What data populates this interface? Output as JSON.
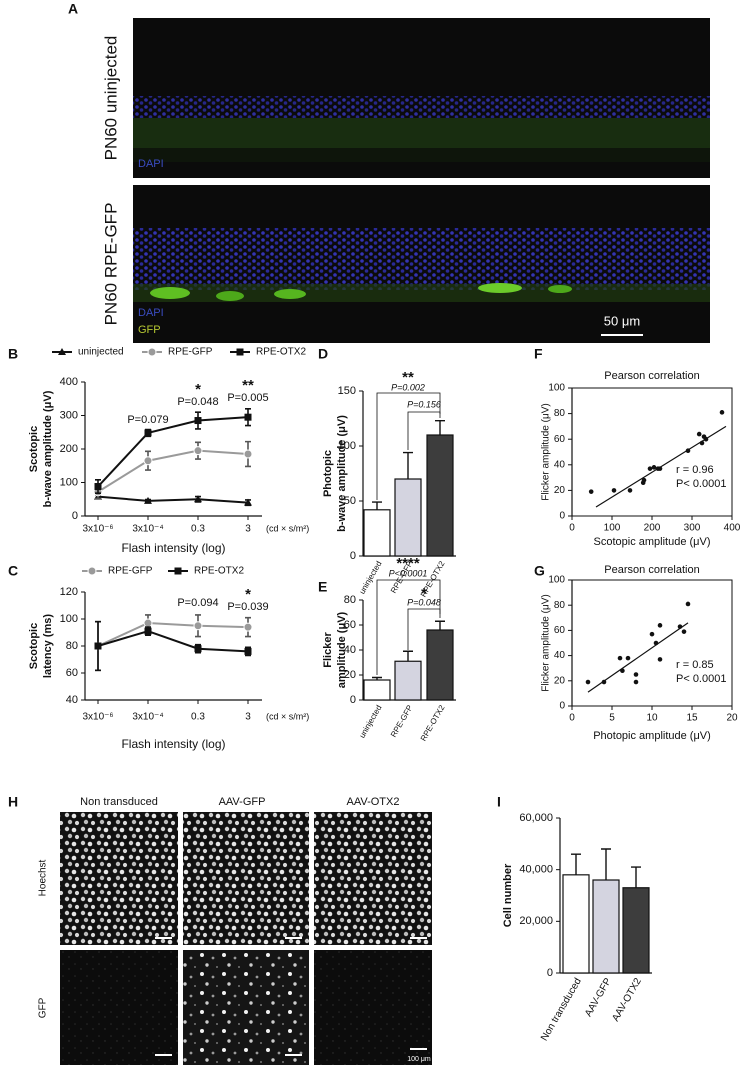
{
  "images": {
    "A": {
      "panel": "A",
      "rows": [
        {
          "label": "PN60 uninjected",
          "stains": [
            "DAPI"
          ]
        },
        {
          "label": "PN60 RPE-GFP",
          "stains": [
            "DAPI",
            "GFP"
          ],
          "scale_bar": "50 μm"
        }
      ]
    },
    "H": {
      "panel": "H",
      "columns": [
        "Non transduced",
        "AAV-GFP",
        "AAV-OTX2"
      ],
      "rows": [
        "Hoechst",
        "GFP"
      ],
      "scale_bar": "100 μm"
    }
  },
  "chart_data": [
    {
      "panel": "B",
      "type": "line",
      "ylabel": [
        "Scotopic",
        "b-wave amplitude (μV)"
      ],
      "xlabel": "Flash intensity (log)",
      "x_unit": "(cd × s/m²)",
      "categories": [
        "3x10⁻⁶",
        "3x10⁻⁴",
        "0.3",
        "3"
      ],
      "series": [
        {
          "name": "uninjected",
          "color": "#111111",
          "marker": "triangle",
          "values": [
            58,
            45,
            50,
            40
          ],
          "errors": [
            5,
            4,
            8,
            8
          ]
        },
        {
          "name": "RPE-GFP",
          "color": "#9a9a9a",
          "marker": "circle",
          "values": [
            72,
            165,
            195,
            185
          ],
          "errors": [
            20,
            28,
            25,
            37
          ]
        },
        {
          "name": "RPE-OTX2",
          "color": "#111111",
          "marker": "square",
          "values": [
            88,
            248,
            285,
            295
          ],
          "errors": [
            20,
            10,
            25,
            25
          ]
        }
      ],
      "ylim": [
        0,
        400
      ],
      "yticks": [
        0,
        100,
        200,
        300,
        400
      ],
      "annotations": [
        "P=0.079",
        "*",
        "P=0.048",
        "**",
        "P=0.005"
      ]
    },
    {
      "panel": "C",
      "type": "line",
      "ylabel": [
        "Scotopic",
        "latency (ms)"
      ],
      "xlabel": "Flash intensity (log)",
      "x_unit": "(cd × s/m²)",
      "categories": [
        "3x10⁻⁶",
        "3x10⁻⁴",
        "0.3",
        "3"
      ],
      "series": [
        {
          "name": "RPE-GFP",
          "color": "#9a9a9a",
          "marker": "circle",
          "values": [
            80,
            97,
            95,
            94
          ],
          "errors": [
            18,
            6,
            8,
            7
          ]
        },
        {
          "name": "RPE-OTX2",
          "color": "#111111",
          "marker": "square",
          "values": [
            80,
            91,
            78,
            76
          ],
          "errors": [
            18,
            3,
            3,
            3
          ]
        }
      ],
      "ylim": [
        40,
        120
      ],
      "yticks": [
        40,
        60,
        80,
        100,
        120
      ],
      "annotations": [
        "P=0.094",
        "P=0.039",
        "*"
      ]
    },
    {
      "panel": "D",
      "type": "bar",
      "ylabel": [
        "Photopic",
        "b-wave amplitude (μV)"
      ],
      "categories": [
        "uninjected",
        "RPE-GFP",
        "RPE-OTX2"
      ],
      "values": [
        42,
        70,
        110
      ],
      "errors": [
        7,
        24,
        13
      ],
      "colors": [
        "#ffffff",
        "#d4d4e0",
        "#3d3d3d"
      ],
      "ylim": [
        0,
        150
      ],
      "yticks": [
        0,
        50,
        100,
        150
      ],
      "annotations": [
        "**",
        "P=0.002",
        "P=0.156"
      ]
    },
    {
      "panel": "E",
      "type": "bar",
      "ylabel": [
        "Flicker",
        "amplitude (μV)"
      ],
      "categories": [
        "uninjected",
        "RPE-GFP",
        "RPE-OTX2"
      ],
      "values": [
        16,
        31,
        56
      ],
      "errors": [
        2,
        8,
        7
      ],
      "colors": [
        "#ffffff",
        "#d4d4e0",
        "#3d3d3d"
      ],
      "ylim": [
        0,
        80
      ],
      "yticks": [
        0,
        20,
        40,
        60,
        80
      ],
      "annotations": [
        "****",
        "P<0.0001",
        "*",
        "P=0.048"
      ]
    },
    {
      "panel": "F",
      "type": "scatter",
      "title": "Pearson correlation",
      "xlabel": "Scotopic amplitude (μV)",
      "ylabel": "Flicker amplitude (μV)",
      "x": [
        48,
        105,
        145,
        178,
        180,
        195,
        205,
        215,
        220,
        290,
        318,
        325,
        330,
        335,
        375
      ],
      "y": [
        19,
        20,
        20,
        26,
        28,
        37,
        38,
        37,
        37,
        51,
        64,
        57,
        62,
        60,
        81
      ],
      "trendline": {
        "x": [
          60,
          385
        ],
        "y": [
          7,
          70
        ]
      },
      "xlim": [
        0,
        400
      ],
      "xticks": [
        0,
        100,
        200,
        300,
        400
      ],
      "ylim": [
        0,
        100
      ],
      "yticks": [
        0,
        20,
        40,
        60,
        80,
        100
      ],
      "annotations": [
        "r = 0.96",
        "P< 0.0001"
      ]
    },
    {
      "panel": "G",
      "type": "scatter",
      "title": "Pearson correlation",
      "xlabel": "Photopic amplitude (μV)",
      "ylabel": "Flicker amplitude (μV)",
      "x": [
        2,
        4,
        6,
        6.3,
        7,
        8,
        8,
        10,
        10.5,
        11,
        11,
        13.5,
        14,
        14.5
      ],
      "y": [
        19,
        19,
        38,
        28,
        38,
        19,
        25,
        57,
        50,
        64,
        37,
        63,
        59,
        81
      ],
      "trendline": {
        "x": [
          2,
          14.5
        ],
        "y": [
          11,
          66
        ]
      },
      "xlim": [
        0,
        20
      ],
      "xticks": [
        0,
        5,
        10,
        15,
        20
      ],
      "ylim": [
        0,
        100
      ],
      "yticks": [
        0,
        20,
        40,
        60,
        80,
        100
      ],
      "annotations": [
        "r = 0.85",
        "P< 0.0001"
      ]
    },
    {
      "panel": "I",
      "type": "bar",
      "ylabel": [
        "Cell number"
      ],
      "categories": [
        "Non transduced",
        "AAV-GFP",
        "AAV-OTX2"
      ],
      "values": [
        38000,
        36000,
        33000
      ],
      "errors": [
        8000,
        12000,
        8000
      ],
      "colors": [
        "#ffffff",
        "#d4d4e0",
        "#3d3d3d"
      ],
      "ylim": [
        0,
        60000
      ],
      "yticks": [
        0,
        {
          "value": 20000,
          "label": "20,000"
        },
        {
          "value": 40000,
          "label": "40,000"
        },
        {
          "value": 60000,
          "label": "60,000"
        }
      ],
      "annotations": []
    }
  ]
}
